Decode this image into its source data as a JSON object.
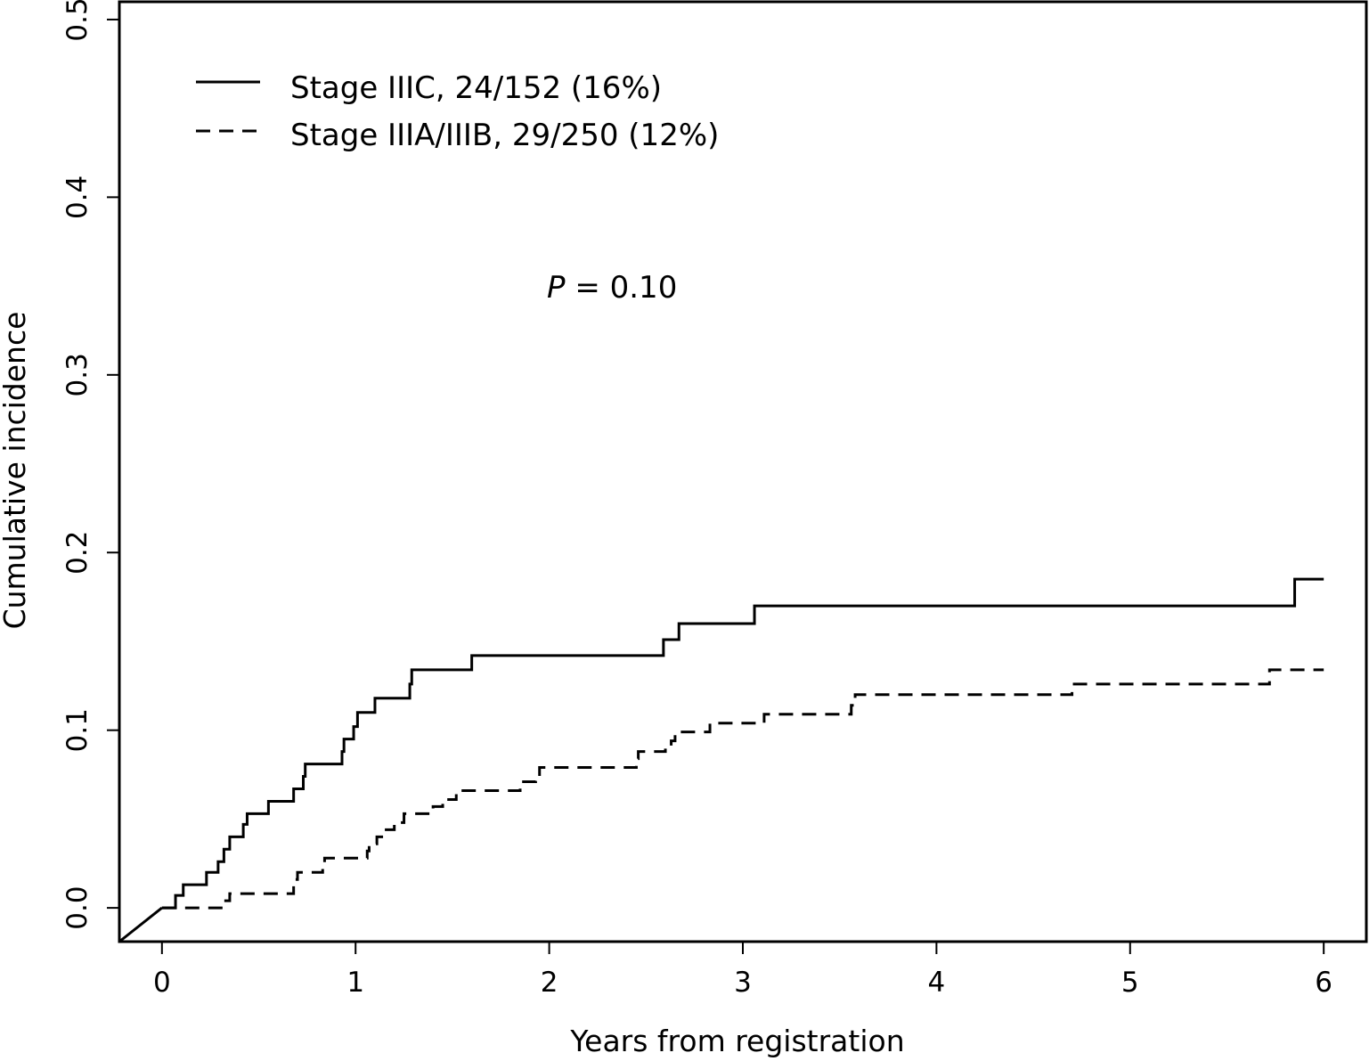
{
  "chart_data": {
    "type": "line",
    "title": "",
    "xlabel": "Years from registration",
    "ylabel": "Cumulative incidence",
    "xlim": [
      -0.22,
      6.22
    ],
    "ylim": [
      -0.019,
      0.51
    ],
    "x_ticks": [
      "0",
      "1",
      "2",
      "3",
      "4",
      "5",
      "6"
    ],
    "y_ticks": [
      "0.0",
      "0.1",
      "0.2",
      "0.3",
      "0.4",
      "0.5"
    ],
    "grid": false,
    "legend_position": "top-left",
    "annotation": {
      "italic": "P",
      "rest": " = 0.10"
    },
    "series": [
      {
        "name": "Stage IIIC, 24/152 (16%)",
        "style": "solid",
        "color": "#000000",
        "step": true,
        "x": [
          0.0,
          0.07,
          0.11,
          0.23,
          0.29,
          0.32,
          0.35,
          0.38,
          0.42,
          0.44,
          0.55,
          0.68,
          0.73,
          0.74,
          0.93,
          0.94,
          0.99,
          1.01,
          1.1,
          1.28,
          1.29,
          1.6,
          2.59,
          2.67,
          3.06,
          5.85,
          6.0
        ],
        "y": [
          0.0,
          0.007,
          0.013,
          0.02,
          0.026,
          0.033,
          0.04,
          0.04,
          0.047,
          0.053,
          0.06,
          0.067,
          0.074,
          0.081,
          0.088,
          0.095,
          0.102,
          0.11,
          0.118,
          0.126,
          0.134,
          0.142,
          0.151,
          0.16,
          0.17,
          0.185,
          0.185
        ]
      },
      {
        "name": "Stage IIIA/IIIB, 29/250 (12%)",
        "style": "dashed",
        "color": "#000000",
        "step": true,
        "x": [
          0.0,
          0.32,
          0.35,
          0.68,
          0.7,
          0.83,
          0.84,
          1.06,
          1.07,
          1.11,
          1.15,
          1.2,
          1.25,
          1.4,
          1.45,
          1.52,
          1.85,
          1.93,
          1.95,
          2.45,
          2.46,
          2.6,
          2.63,
          2.65,
          2.83,
          3.11,
          3.56,
          3.58,
          4.7,
          5.72,
          6.0
        ],
        "y": [
          0.0,
          0.004,
          0.008,
          0.016,
          0.02,
          0.024,
          0.028,
          0.032,
          0.036,
          0.04,
          0.044,
          0.048,
          0.053,
          0.057,
          0.061,
          0.066,
          0.071,
          0.075,
          0.079,
          0.084,
          0.088,
          0.09,
          0.094,
          0.099,
          0.104,
          0.109,
          0.114,
          0.12,
          0.126,
          0.134,
          0.134
        ]
      }
    ]
  }
}
